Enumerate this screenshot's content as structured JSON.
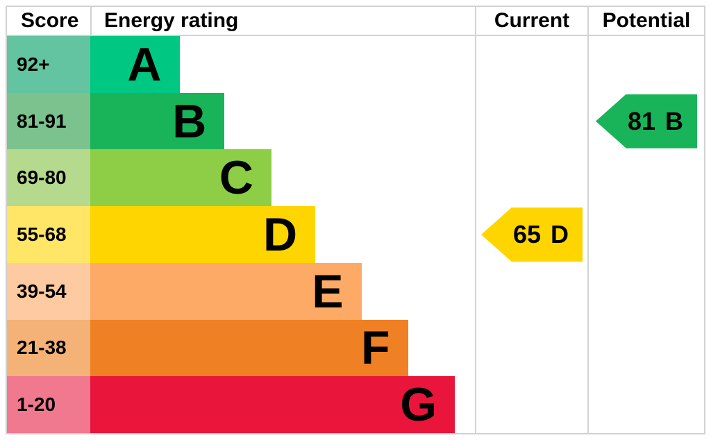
{
  "header": {
    "score": "Score",
    "energy_rating": "Energy rating",
    "current": "Current",
    "potential": "Potential"
  },
  "chart_data": {
    "type": "bar",
    "subtype": "epc-energy-rating-certificate",
    "orientation": "horizontal",
    "columns": [
      "Score",
      "Energy rating",
      "Current",
      "Potential"
    ],
    "bands": [
      {
        "letter": "A",
        "score_range": "92+",
        "bar_color": "#00c781",
        "score_tint": "#62c4a0",
        "width_pct": 23.2
      },
      {
        "letter": "B",
        "score_range": "81-91",
        "bar_color": "#19b459",
        "score_tint": "#7cc28e",
        "width_pct": 34.9
      },
      {
        "letter": "C",
        "score_range": "69-80",
        "bar_color": "#8dce46",
        "score_tint": "#b5da8e",
        "width_pct": 47.1
      },
      {
        "letter": "D",
        "score_range": "55-68",
        "bar_color": "#ffd500",
        "score_tint": "#ffe666",
        "width_pct": 58.5
      },
      {
        "letter": "E",
        "score_range": "39-54",
        "bar_color": "#fcaa65",
        "score_tint": "#fdcaa1",
        "width_pct": 70.5
      },
      {
        "letter": "F",
        "score_range": "21-38",
        "bar_color": "#ef8023",
        "score_tint": "#f4b277",
        "width_pct": 82.6
      },
      {
        "letter": "G",
        "score_range": "1-20",
        "bar_color": "#e9153b",
        "score_tint": "#f1798f",
        "width_pct": 94.8
      }
    ],
    "current": {
      "value": "65",
      "band": "D",
      "arrow_color": "#ffd500"
    },
    "potential": {
      "value": "81",
      "band": "B",
      "arrow_color": "#19b459"
    }
  },
  "colors": {
    "border": "#d2d2d2",
    "background": "#ffffff",
    "text": "#000000"
  }
}
